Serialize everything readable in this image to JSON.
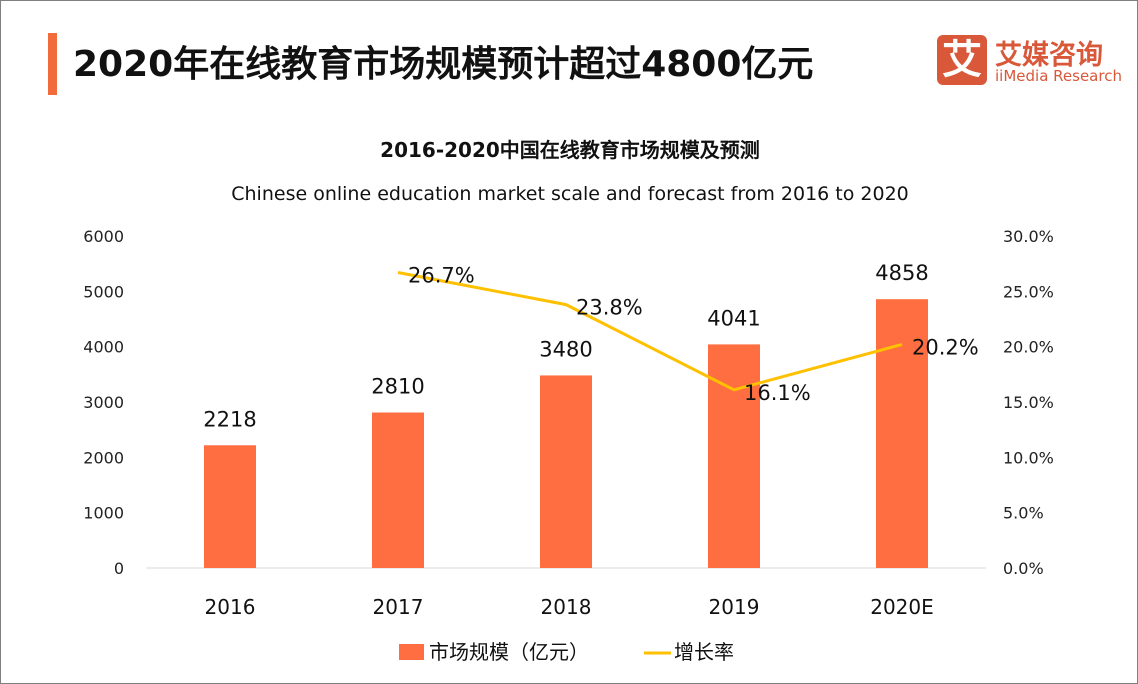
{
  "header": {
    "title": "2020年在线教育市场规模预计超过4800亿元",
    "accent_color": "#f26b3a"
  },
  "logo": {
    "mark": "艾",
    "name_cn": "艾媒咨询",
    "name_en": "iiMedia Research",
    "color": "#d9583a"
  },
  "chart_data": {
    "type": "bar+line",
    "title": "2016-2020中国在线教育市场规模及预测",
    "subtitle": "Chinese online education market scale and forecast from 2016 to 2020",
    "categories": [
      "2016",
      "2017",
      "2018",
      "2019",
      "2020E"
    ],
    "series": [
      {
        "name": "市场规模（亿元）",
        "type": "bar",
        "axis": "left",
        "color": "#ff6e40",
        "values": [
          2218,
          2810,
          3480,
          4041,
          4858
        ],
        "labels": [
          "2218",
          "2810",
          "3480",
          "4041",
          "4858"
        ]
      },
      {
        "name": "增长率",
        "type": "line",
        "axis": "right",
        "color": "#ffc000",
        "values": [
          null,
          26.7,
          23.8,
          16.1,
          20.2
        ],
        "labels": [
          "",
          "26.7%",
          "23.8%",
          "16.1%",
          "20.2%"
        ]
      }
    ],
    "left_axis": {
      "ylim": [
        0,
        6000
      ],
      "ticks": [
        "0",
        "1000",
        "2000",
        "3000",
        "4000",
        "5000",
        "6000"
      ]
    },
    "right_axis": {
      "ylim": [
        0,
        30
      ],
      "ticks": [
        "0.0%",
        "5.0%",
        "10.0%",
        "15.0%",
        "20.0%",
        "25.0%",
        "30.0%"
      ]
    },
    "grid": false,
    "legend": "bottom"
  }
}
